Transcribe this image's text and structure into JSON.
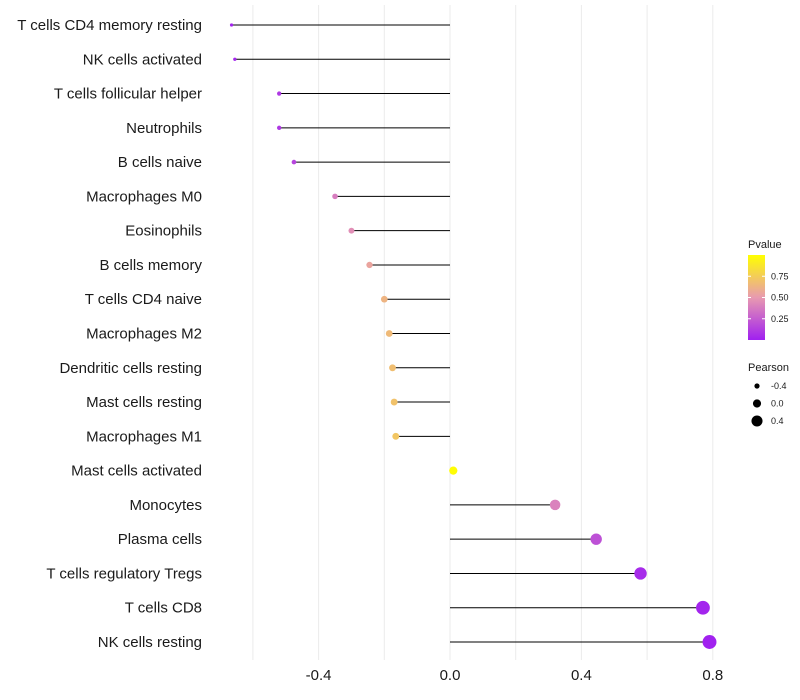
{
  "chart_data": {
    "type": "lollipop",
    "title": "",
    "xlabel": "",
    "ylabel": "",
    "xlim": [
      -0.7,
      0.85
    ],
    "x_ticks": [
      -0.4,
      0.0,
      0.4,
      0.8
    ],
    "x_tick_labels": [
      "-0.4",
      "0.0",
      "0.4",
      "0.8"
    ],
    "grid": true,
    "categories": [
      "T cells CD4 memory resting",
      "NK cells activated",
      "T cells follicular helper",
      "Neutrophils",
      "B cells naive",
      "Macrophages M0",
      "Eosinophils",
      "B cells memory",
      "T cells CD4 naive",
      "Macrophages M2",
      "Dendritic cells resting",
      "Mast cells resting",
      "Macrophages M1",
      "Mast cells activated",
      "Monocytes",
      "Plasma cells",
      "T cells regulatory  Tregs ",
      "T cells CD8",
      "NK cells resting"
    ],
    "pearson": [
      -0.665,
      -0.655,
      -0.52,
      -0.52,
      -0.475,
      -0.35,
      -0.3,
      -0.245,
      -0.2,
      -0.185,
      -0.175,
      -0.17,
      -0.165,
      0.01,
      0.32,
      0.445,
      0.58,
      0.77,
      0.79
    ],
    "pvalue": [
      0.02,
      0.03,
      0.1,
      0.1,
      0.15,
      0.38,
      0.45,
      0.55,
      0.63,
      0.66,
      0.68,
      0.7,
      0.72,
      0.99,
      0.4,
      0.2,
      0.05,
      0.02,
      0.01
    ],
    "color_legend": {
      "title": "Pvalue",
      "ticks": [
        0.25,
        0.5,
        0.75
      ],
      "tick_labels": [
        "0.25",
        "0.50",
        "0.75"
      ],
      "range": [
        0,
        1
      ],
      "low_color": "#a020f0",
      "mid_color": "#e89ab0",
      "high_color": "#ffff00",
      "placement": "right"
    },
    "size_legend": {
      "title": "Pearson",
      "values": [
        -0.4,
        0.0,
        0.4
      ],
      "labels": [
        "-0.4",
        "0.0",
        "0.4"
      ],
      "placement": "right"
    },
    "colors": {
      "stem": "#000000",
      "grid": "#ebebeb",
      "text": "#1a1a1a",
      "background": "#ffffff"
    }
  }
}
